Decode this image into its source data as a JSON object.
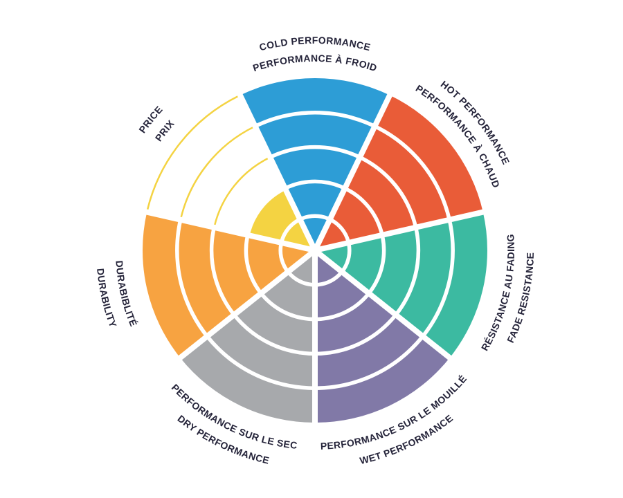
{
  "page": {
    "background_color": "#ffffff"
  },
  "chart_data": {
    "type": "pie",
    "variant": "segmented-performance-wheel",
    "title": "",
    "rings_total": 5,
    "ring_divider_color": "#ffffff",
    "label_color": "#25243a",
    "legend_position": "around-wheel",
    "sectors": [
      {
        "name": "cold-performance",
        "line1": "COLD PERFORMANCE",
        "line2": "PERFORMANCE À FROID",
        "filled_rings": 5,
        "color": "#2d9dd6",
        "mid_angle_deg": 270,
        "label_side": "top"
      },
      {
        "name": "hot-performance",
        "line1": "HOT PERFORMANCE",
        "line2": "PERFORMANCE À CHAUD",
        "filled_rings": 5,
        "color": "#e95c38",
        "mid_angle_deg": 321.4286,
        "label_side": "top"
      },
      {
        "name": "fade-resistance",
        "line1": "RÉSISTANCE AU FADING",
        "line2": "FADE RESISTANCE",
        "filled_rings": 5,
        "color": "#3cbaa1",
        "mid_angle_deg": 12.8571,
        "label_side": "bottom"
      },
      {
        "name": "wet-performance",
        "line1": "PERFORMANCE SUR LE MOUILLÉ",
        "line2": "WET PERFORMANCE",
        "filled_rings": 5,
        "color": "#8179a7",
        "mid_angle_deg": 64.2857,
        "label_side": "bottom"
      },
      {
        "name": "dry-performance",
        "line1": "PERFORMANCE SUR LE SEC",
        "line2": "DRY PERFORMANCE",
        "filled_rings": 5,
        "color": "#a7a9ac",
        "mid_angle_deg": 115.7143,
        "label_side": "bottom"
      },
      {
        "name": "durability",
        "line1": "DURABIBLITÉ",
        "line2": "DURABILITY",
        "filled_rings": 5,
        "color": "#f7a341",
        "mid_angle_deg": 167.1429,
        "label_side": "bottom"
      },
      {
        "name": "price",
        "line1": "PRICE",
        "line2": "PRIX",
        "filled_rings": 2,
        "outlined_rings": [
          3,
          4,
          5
        ],
        "color": "#f4d342",
        "mid_angle_deg": 218.5714,
        "label_side": "top"
      }
    ]
  }
}
